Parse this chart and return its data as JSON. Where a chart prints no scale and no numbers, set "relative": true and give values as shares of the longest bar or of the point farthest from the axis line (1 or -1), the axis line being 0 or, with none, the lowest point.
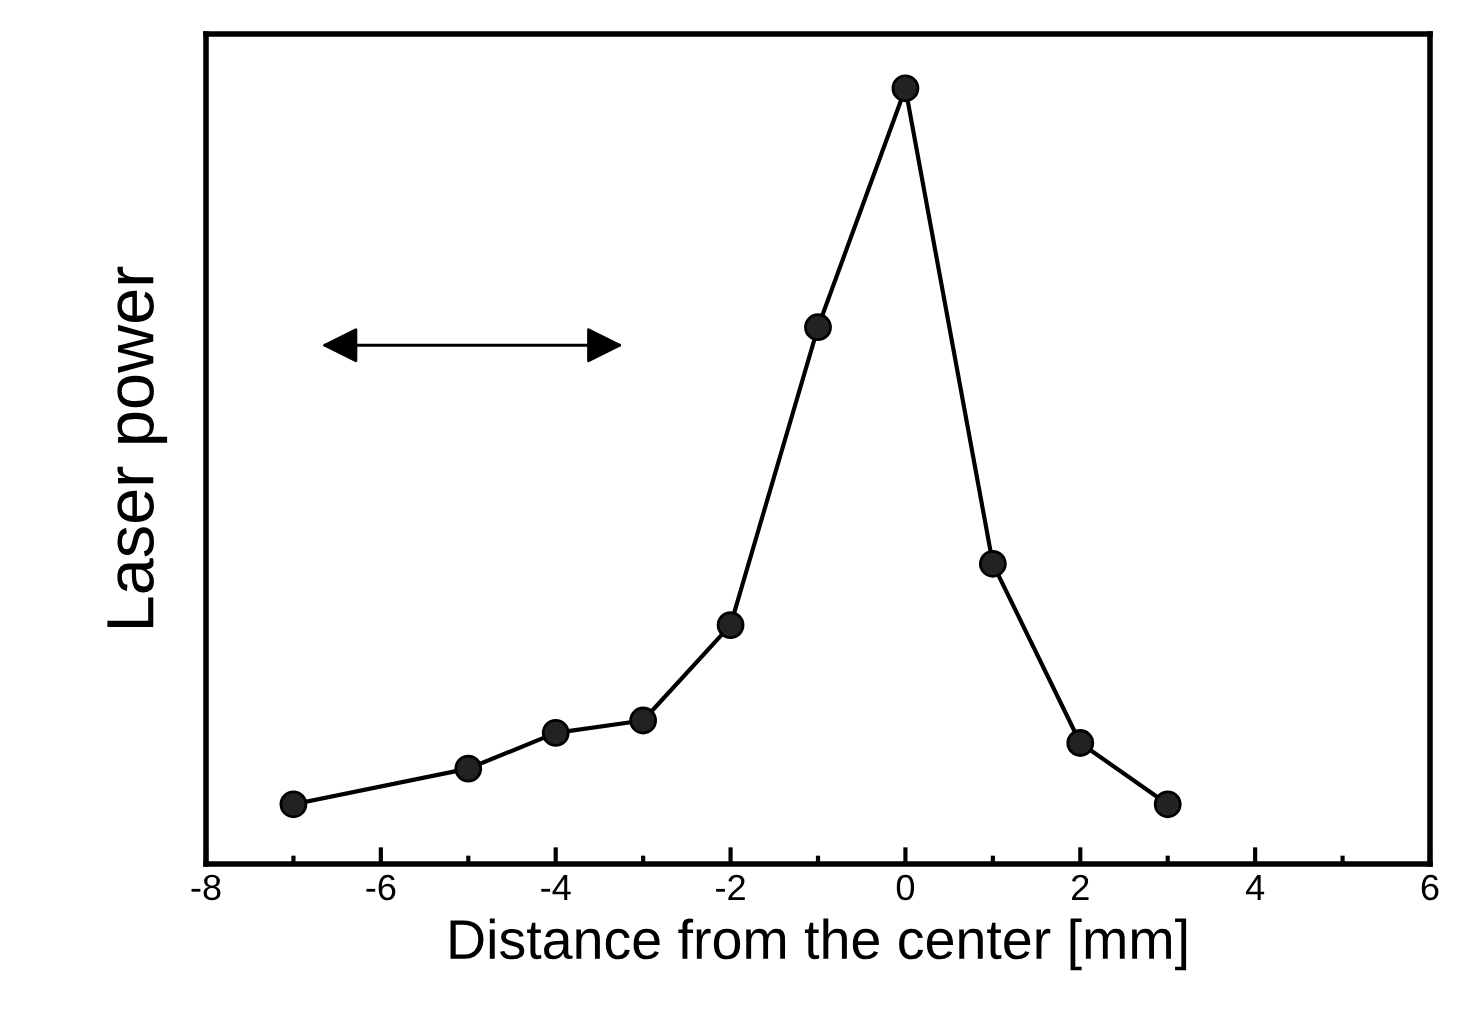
{
  "chart_data": {
    "type": "line",
    "relative": true,
    "xlabel": "Distance from the center [mm]",
    "ylabel": "Laser power",
    "x": [
      -7,
      -5,
      -4,
      -3,
      -2,
      -1,
      0,
      1,
      2,
      3
    ],
    "series": [
      {
        "color": "#000000",
        "values": [
          0.077,
          0.123,
          0.169,
          0.185,
          0.308,
          0.692,
          1,
          0.387,
          0.156,
          0.077
        ]
      }
    ],
    "xlim": [
      -8,
      6
    ],
    "xticks": [
      -8,
      -6,
      -4,
      -2,
      0,
      2,
      4,
      6
    ],
    "marker": "circle",
    "line_style": "solid",
    "grid": false,
    "legend": false
  }
}
